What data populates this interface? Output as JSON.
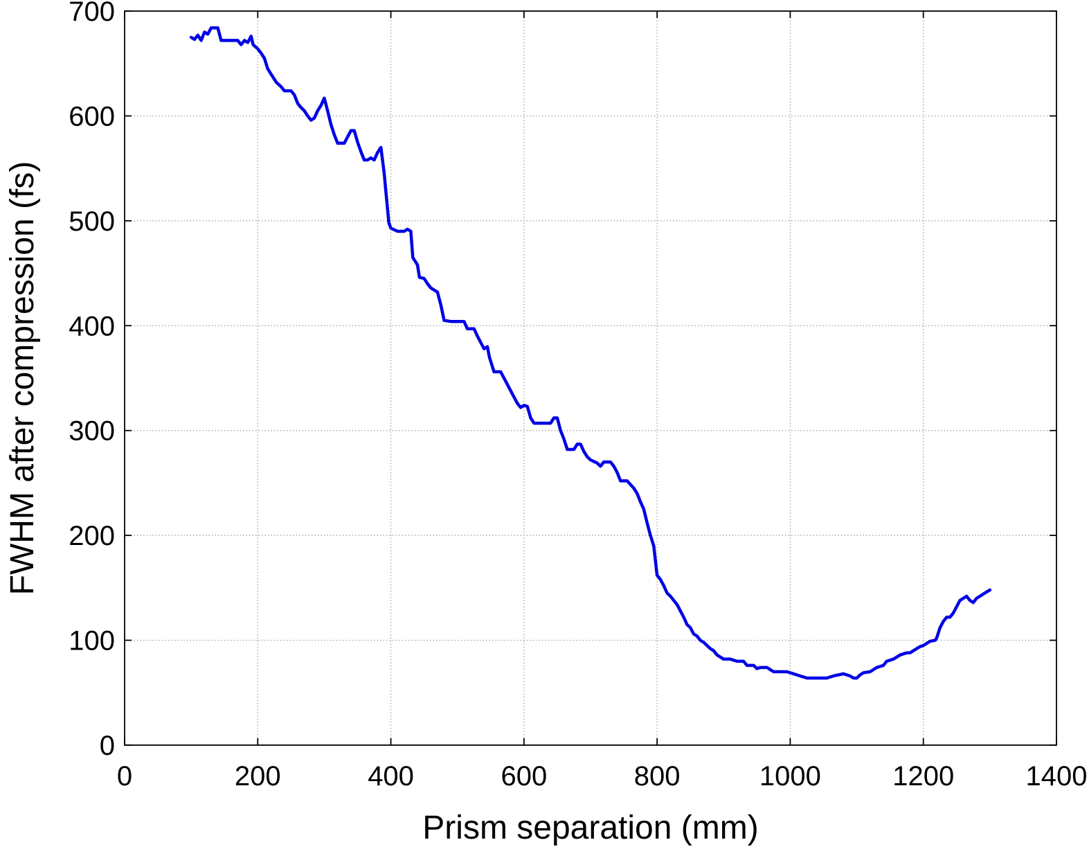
{
  "chart_data": {
    "type": "line",
    "title": "",
    "xlabel": "Prism separation (mm)",
    "ylabel": "FWHM after compression (fs)",
    "xlim": [
      0,
      1400
    ],
    "ylim": [
      0,
      700
    ],
    "x_ticks": [
      0,
      200,
      400,
      600,
      800,
      1000,
      1200,
      1400
    ],
    "y_ticks": [
      0,
      100,
      200,
      300,
      400,
      500,
      600,
      700
    ],
    "x_tick_labels": [
      "0",
      "200",
      "400",
      "600",
      "800",
      "1000",
      "1200",
      "1400"
    ],
    "y_tick_labels": [
      "0",
      "100",
      "200",
      "300",
      "400",
      "500",
      "600",
      "700"
    ],
    "grid": true,
    "grid_style": "dotted",
    "legend": "none",
    "colors": {
      "line": "#0000e6",
      "axes": "#000000",
      "grid": "#9a9a9a",
      "background": "#ffffff"
    },
    "series": [
      {
        "points": [
          [
            100,
            675
          ],
          [
            105,
            673
          ],
          [
            110,
            677
          ],
          [
            115,
            672
          ],
          [
            120,
            680
          ],
          [
            125,
            678
          ],
          [
            130,
            684
          ],
          [
            140,
            684
          ],
          [
            145,
            672
          ],
          [
            160,
            672
          ],
          [
            170,
            672
          ],
          [
            175,
            668
          ],
          [
            180,
            672
          ],
          [
            185,
            670
          ],
          [
            190,
            676
          ],
          [
            193,
            668
          ],
          [
            200,
            664
          ],
          [
            205,
            660
          ],
          [
            210,
            655
          ],
          [
            215,
            645
          ],
          [
            220,
            640
          ],
          [
            228,
            632
          ],
          [
            235,
            628
          ],
          [
            240,
            624
          ],
          [
            250,
            624
          ],
          [
            255,
            620
          ],
          [
            260,
            612
          ],
          [
            265,
            608
          ],
          [
            270,
            605
          ],
          [
            275,
            600
          ],
          [
            280,
            596
          ],
          [
            285,
            598
          ],
          [
            290,
            605
          ],
          [
            295,
            610
          ],
          [
            300,
            617
          ],
          [
            305,
            605
          ],
          [
            310,
            592
          ],
          [
            315,
            582
          ],
          [
            320,
            574
          ],
          [
            330,
            574
          ],
          [
            335,
            580
          ],
          [
            340,
            586
          ],
          [
            345,
            586
          ],
          [
            350,
            575
          ],
          [
            355,
            566
          ],
          [
            360,
            558
          ],
          [
            365,
            558
          ],
          [
            370,
            560
          ],
          [
            375,
            558
          ],
          [
            380,
            565
          ],
          [
            385,
            570
          ],
          [
            390,
            545
          ],
          [
            393,
            525
          ],
          [
            397,
            498
          ],
          [
            400,
            493
          ],
          [
            410,
            490
          ],
          [
            420,
            490
          ],
          [
            425,
            492
          ],
          [
            430,
            490
          ],
          [
            433,
            465
          ],
          [
            440,
            458
          ],
          [
            443,
            446
          ],
          [
            450,
            445
          ],
          [
            455,
            440
          ],
          [
            460,
            436
          ],
          [
            470,
            432
          ],
          [
            475,
            420
          ],
          [
            480,
            405
          ],
          [
            490,
            404
          ],
          [
            510,
            404
          ],
          [
            515,
            397
          ],
          [
            525,
            397
          ],
          [
            530,
            390
          ],
          [
            535,
            384
          ],
          [
            540,
            378
          ],
          [
            545,
            380
          ],
          [
            548,
            370
          ],
          [
            555,
            356
          ],
          [
            565,
            356
          ],
          [
            570,
            350
          ],
          [
            575,
            344
          ],
          [
            580,
            338
          ],
          [
            585,
            332
          ],
          [
            590,
            326
          ],
          [
            595,
            322
          ],
          [
            600,
            324
          ],
          [
            605,
            323
          ],
          [
            610,
            312
          ],
          [
            615,
            307
          ],
          [
            630,
            307
          ],
          [
            640,
            307
          ],
          [
            645,
            312
          ],
          [
            650,
            312
          ],
          [
            655,
            300
          ],
          [
            660,
            292
          ],
          [
            665,
            282
          ],
          [
            675,
            282
          ],
          [
            680,
            287
          ],
          [
            685,
            287
          ],
          [
            690,
            280
          ],
          [
            695,
            275
          ],
          [
            700,
            272
          ],
          [
            710,
            269
          ],
          [
            715,
            266
          ],
          [
            720,
            270
          ],
          [
            730,
            270
          ],
          [
            735,
            266
          ],
          [
            740,
            260
          ],
          [
            745,
            252
          ],
          [
            755,
            252
          ],
          [
            765,
            245
          ],
          [
            770,
            240
          ],
          [
            775,
            232
          ],
          [
            780,
            225
          ],
          [
            785,
            212
          ],
          [
            790,
            200
          ],
          [
            795,
            190
          ],
          [
            800,
            162
          ],
          [
            805,
            158
          ],
          [
            810,
            152
          ],
          [
            815,
            145
          ],
          [
            820,
            142
          ],
          [
            825,
            138
          ],
          [
            830,
            134
          ],
          [
            835,
            128
          ],
          [
            840,
            122
          ],
          [
            845,
            115
          ],
          [
            850,
            112
          ],
          [
            855,
            106
          ],
          [
            860,
            104
          ],
          [
            865,
            100
          ],
          [
            870,
            98
          ],
          [
            880,
            92
          ],
          [
            885,
            90
          ],
          [
            890,
            86
          ],
          [
            895,
            84
          ],
          [
            900,
            82
          ],
          [
            910,
            82
          ],
          [
            920,
            80
          ],
          [
            930,
            80
          ],
          [
            935,
            76
          ],
          [
            945,
            76
          ],
          [
            950,
            73
          ],
          [
            955,
            74
          ],
          [
            965,
            74
          ],
          [
            970,
            72
          ],
          [
            975,
            70
          ],
          [
            985,
            70
          ],
          [
            995,
            70
          ],
          [
            1005,
            68
          ],
          [
            1015,
            66
          ],
          [
            1025,
            64
          ],
          [
            1040,
            64
          ],
          [
            1055,
            64
          ],
          [
            1065,
            66
          ],
          [
            1080,
            68
          ],
          [
            1090,
            66
          ],
          [
            1095,
            64
          ],
          [
            1100,
            64
          ],
          [
            1105,
            67
          ],
          [
            1110,
            69
          ],
          [
            1120,
            70
          ],
          [
            1125,
            72
          ],
          [
            1130,
            74
          ],
          [
            1140,
            76
          ],
          [
            1145,
            80
          ],
          [
            1155,
            82
          ],
          [
            1160,
            84
          ],
          [
            1165,
            86
          ],
          [
            1175,
            88
          ],
          [
            1180,
            88
          ],
          [
            1185,
            90
          ],
          [
            1190,
            92
          ],
          [
            1195,
            94
          ],
          [
            1200,
            95
          ],
          [
            1205,
            97
          ],
          [
            1210,
            99
          ],
          [
            1218,
            100
          ],
          [
            1220,
            102
          ],
          [
            1225,
            112
          ],
          [
            1230,
            118
          ],
          [
            1235,
            122
          ],
          [
            1240,
            122
          ],
          [
            1245,
            126
          ],
          [
            1250,
            132
          ],
          [
            1255,
            138
          ],
          [
            1260,
            140
          ],
          [
            1265,
            142
          ],
          [
            1270,
            138
          ],
          [
            1275,
            136
          ],
          [
            1280,
            140
          ],
          [
            1285,
            142
          ],
          [
            1290,
            144
          ],
          [
            1295,
            146
          ],
          [
            1300,
            148
          ]
        ]
      }
    ]
  }
}
